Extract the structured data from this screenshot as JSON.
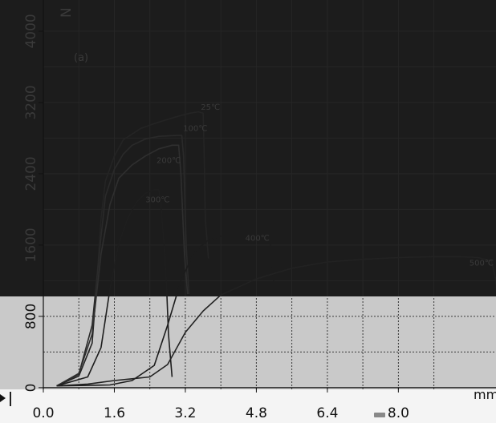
{
  "chart_data": {
    "type": "line",
    "panel_label": "(a)",
    "xlabel": "mm",
    "ylabel": "N",
    "xlim": [
      0,
      10.2
    ],
    "ylim": [
      -100,
      4350
    ],
    "x_ticks": [
      "0.0",
      "1.6",
      "3.2",
      "4.8",
      "6.4",
      "8.0"
    ],
    "y_ticks": [
      "0",
      "800",
      "1600",
      "2400",
      "3200",
      "4000"
    ],
    "grid": true,
    "series": [
      {
        "name": "25℃",
        "color": "#242424",
        "label_pos": [
          3.55,
          3120
        ],
        "x": [
          0.3,
          0.8,
          1.1,
          1.2,
          1.3,
          1.4,
          1.6,
          1.8,
          2.2,
          2.6,
          3.0,
          3.3,
          3.5,
          3.6,
          3.62,
          3.65,
          3.72
        ],
        "y": [
          20,
          130,
          500,
          1150,
          1900,
          2320,
          2600,
          2780,
          2910,
          2980,
          3040,
          3080,
          3095,
          3080,
          2700,
          1900,
          1450
        ]
      },
      {
        "name": "100℃",
        "color": "#2a2a2a",
        "label_pos": [
          3.15,
          2880
        ],
        "x": [
          0.3,
          0.8,
          1.1,
          1.3,
          1.4,
          1.6,
          1.8,
          2.0,
          2.3,
          2.6,
          3.0,
          3.12,
          3.16,
          3.22,
          3.28
        ],
        "y": [
          20,
          150,
          700,
          1700,
          2150,
          2450,
          2620,
          2720,
          2790,
          2820,
          2830,
          2830,
          2600,
          1600,
          1050
        ]
      },
      {
        "name": "200℃",
        "color": "#2f2f2f",
        "label_pos": [
          2.55,
          2520
        ],
        "x": [
          0.3,
          0.8,
          1.1,
          1.3,
          1.5,
          1.7,
          2.0,
          2.3,
          2.6,
          2.9,
          3.05,
          3.1,
          3.18,
          3.25
        ],
        "y": [
          20,
          160,
          600,
          1500,
          2050,
          2350,
          2500,
          2600,
          2680,
          2720,
          2720,
          2400,
          1500,
          1050
        ]
      },
      {
        "name": "300℃",
        "color": "#1e1e1e",
        "label_pos": [
          2.3,
          2080
        ],
        "x": [
          0.3,
          1.0,
          1.3,
          1.5,
          1.7,
          1.9,
          2.1,
          2.3,
          2.5,
          2.6,
          2.65,
          2.72,
          2.78,
          2.82,
          2.9
        ],
        "y": [
          20,
          120,
          450,
          1100,
          1620,
          1900,
          2080,
          2180,
          2220,
          2220,
          2050,
          1600,
          1100,
          600,
          120
        ]
      },
      {
        "name": "400℃",
        "color": "#1c1c1c",
        "label_pos": [
          4.55,
          1650
        ],
        "x": [
          0.3,
          1.5,
          2.0,
          2.5,
          2.8,
          3.1,
          3.4,
          3.7,
          4.0,
          4.5,
          4.9,
          5.1,
          5.15,
          5.2
        ],
        "y": [
          20,
          30,
          80,
          250,
          700,
          1200,
          1520,
          1650,
          1700,
          1705,
          1700,
          1690,
          1400,
          1150
        ]
      },
      {
        "name": "500℃",
        "color": "#222222",
        "label_pos": [
          9.6,
          1370
        ],
        "x": [
          0.3,
          1.0,
          1.6,
          2.0,
          2.4,
          2.8,
          3.2,
          3.6,
          4.0,
          4.8,
          5.6,
          6.4,
          7.2,
          8.0,
          8.8,
          9.4,
          9.8,
          10.1,
          10.2,
          10.25,
          10.3
        ],
        "y": [
          20,
          40,
          80,
          100,
          120,
          260,
          620,
          860,
          1040,
          1220,
          1340,
          1410,
          1440,
          1460,
          1470,
          1470,
          1460,
          1420,
          1200,
          700,
          150
        ]
      }
    ],
    "colors": {
      "upper_background": "#1c1c1c",
      "lower_background": "#c9c9c9",
      "upper_gridline": "#262626",
      "lower_gridline": "#3a3a3a",
      "axis": "#111111",
      "upper_label": "#3a3a3a",
      "lower_label": "#111111"
    }
  }
}
